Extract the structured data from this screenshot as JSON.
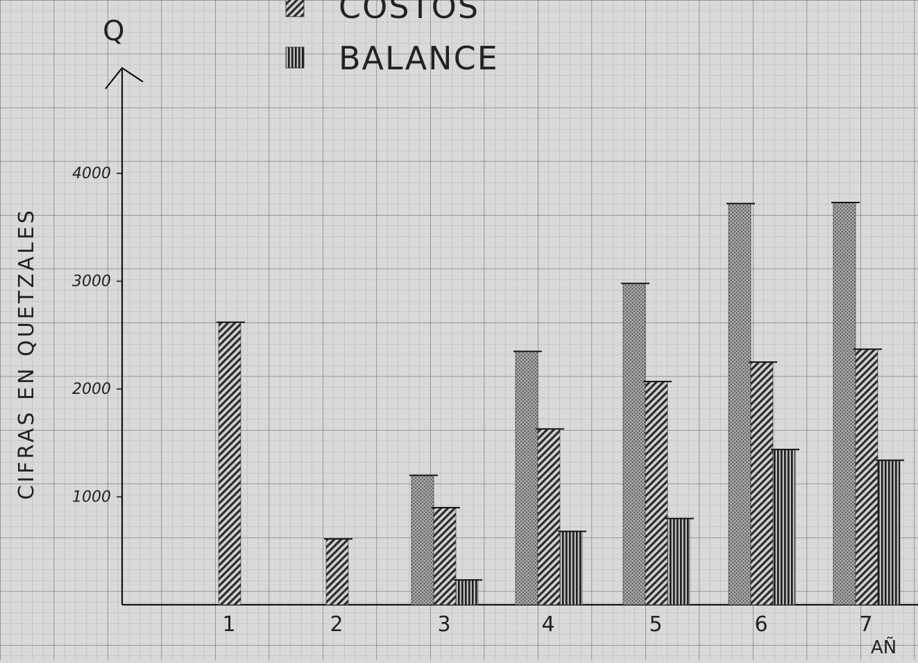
{
  "chart_data": {
    "type": "bar",
    "title": "",
    "ylabel": "CIFRAS EN QUETZALES",
    "y_axis_symbol": "Q",
    "xlabel": "AÑ",
    "categories": [
      "1",
      "2",
      "3",
      "4",
      "5",
      "6",
      "7"
    ],
    "yticks": [
      "1000",
      "2000",
      "3000",
      "4000"
    ],
    "ylim": [
      0,
      4800
    ],
    "grid": true,
    "legend_position": "top-center",
    "series": [
      {
        "name": "",
        "pattern": "dotted",
        "values": [
          null,
          null,
          1200,
          2350,
          2980,
          3720,
          3730
        ]
      },
      {
        "name": "COSTOS",
        "pattern": "diagonal",
        "values": [
          2620,
          610,
          900,
          1630,
          2070,
          2250,
          2370
        ]
      },
      {
        "name": "BALANCE",
        "pattern": "vertical",
        "values": [
          null,
          null,
          230,
          680,
          800,
          1440,
          1340
        ]
      }
    ]
  }
}
